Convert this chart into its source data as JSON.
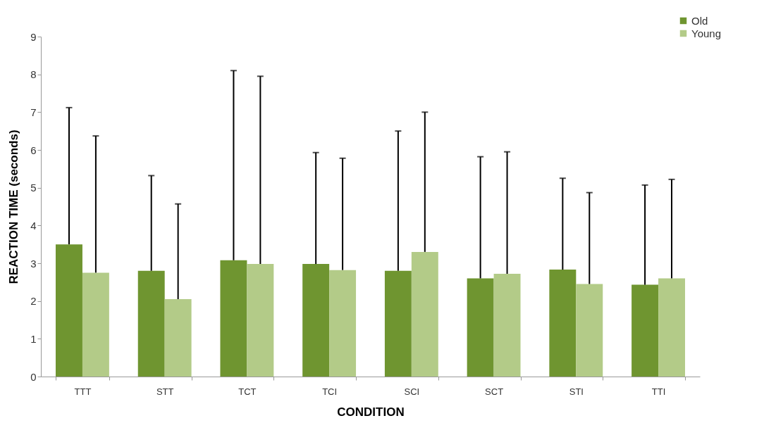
{
  "chart_data": {
    "type": "bar",
    "xlabel": "CONDITION",
    "ylabel": "REACTION TIME (seconds)",
    "categories": [
      "TTT",
      "STT",
      "TCT",
      "TCI",
      "SCI",
      "SCT",
      "STI",
      "TTI"
    ],
    "series": [
      {
        "name": "Old",
        "color": "#6f9530",
        "values": [
          3.5,
          2.8,
          3.08,
          2.98,
          2.8,
          2.6,
          2.83,
          2.43
        ],
        "errors": [
          [
            3.5,
            7.12
          ],
          [
            2.8,
            5.32
          ],
          [
            3.08,
            8.1
          ],
          [
            2.98,
            5.93
          ],
          [
            2.8,
            6.5
          ],
          [
            2.6,
            5.82
          ],
          [
            2.83,
            5.25
          ],
          [
            2.43,
            5.07
          ]
        ]
      },
      {
        "name": "Young",
        "color": "#b3cb88",
        "values": [
          2.75,
          2.05,
          2.98,
          2.82,
          3.3,
          2.72,
          2.45,
          2.6
        ],
        "errors": [
          [
            2.75,
            6.37
          ],
          [
            2.05,
            4.57
          ],
          [
            2.98,
            7.95
          ],
          [
            2.82,
            5.78
          ],
          [
            3.3,
            7.0
          ],
          [
            2.72,
            5.95
          ],
          [
            2.45,
            4.87
          ],
          [
            2.6,
            5.22
          ]
        ]
      }
    ],
    "ylim": [
      0,
      9
    ],
    "yticks": [
      0,
      1,
      2,
      3,
      4,
      5,
      6,
      7,
      8,
      9
    ],
    "grid": false,
    "legend": "top right"
  }
}
